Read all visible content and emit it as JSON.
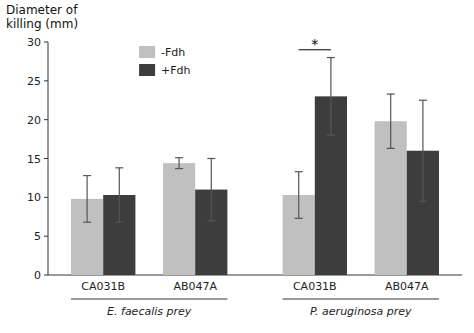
{
  "chart_data": {
    "type": "bar",
    "ylabel": "Diameter of\nkilling (mm)",
    "categories": [
      "CA031B",
      "AB047A",
      "CA031B",
      "AB047A"
    ],
    "category_groups": [
      "E. faecalis prey",
      "P. aeruginosa prey"
    ],
    "series": [
      {
        "name": "-Fdh",
        "color": "#c0c0c0",
        "values": [
          9.8,
          14.4,
          10.3,
          19.8
        ],
        "errors": [
          3.0,
          0.7,
          3.0,
          3.5
        ]
      },
      {
        "name": "+Fdh",
        "color": "#3d3d3d",
        "values": [
          10.3,
          11.0,
          23.0,
          16.0
        ],
        "errors": [
          3.5,
          4.0,
          5.0,
          6.5
        ]
      }
    ],
    "annotations": [
      {
        "text": "*",
        "category": 2,
        "y": 29.0
      }
    ],
    "ylim": [
      0,
      30
    ],
    "yticks": [
      0,
      5,
      10,
      15,
      20,
      25,
      30
    ],
    "legend": "upper left",
    "grid": false
  }
}
